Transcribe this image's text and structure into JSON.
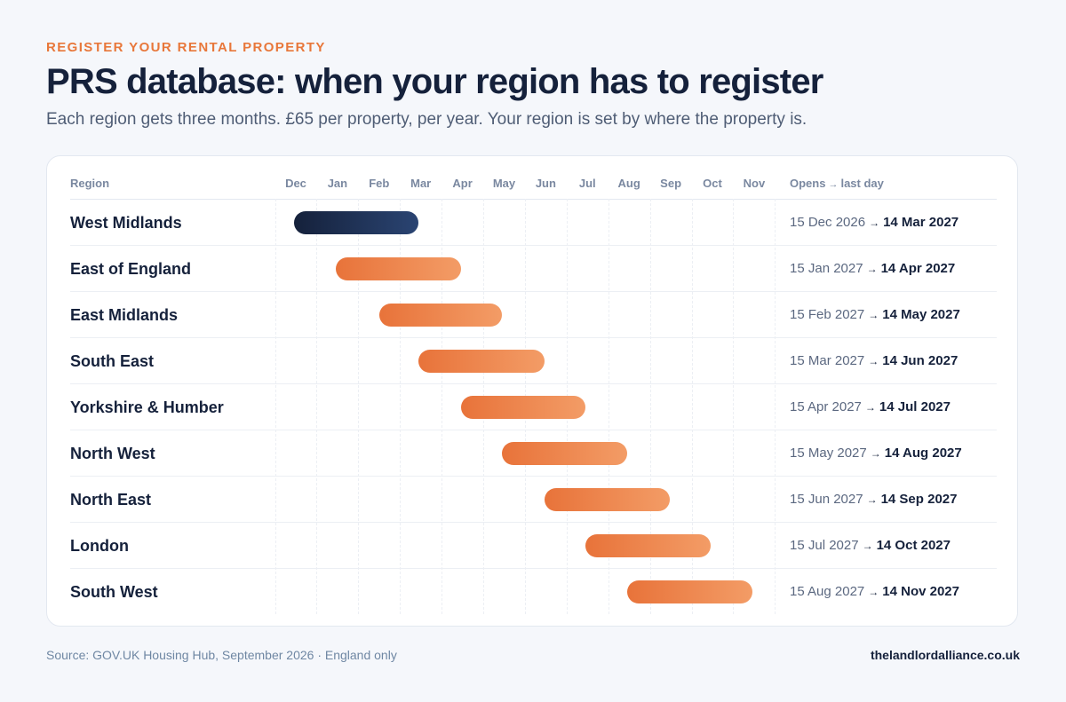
{
  "eyebrow": "REGISTER YOUR RENTAL PROPERTY",
  "title": "PRS database: when your region has to register",
  "subtitle": "Each region gets three months. £65 per property, per year. Your region is set by where the property is.",
  "table": {
    "region_header": "Region",
    "opens_header": "Opens",
    "arrow": "→",
    "last_day_header": "last day"
  },
  "footer": {
    "source": "Source: GOV.UK Housing Hub, September 2026 · England only",
    "site": "thelandlordalliance.co.uk"
  },
  "colors": {
    "accent": "#e8773a",
    "bar_start": "#e8733a",
    "bar_end": "#f39c66",
    "active_start": "#15213b",
    "active_end": "#2a4472",
    "text": "#15213b"
  },
  "chart_data": {
    "type": "gantt",
    "months": [
      "Dec",
      "Jan",
      "Feb",
      "Mar",
      "Apr",
      "May",
      "Jun",
      "Jul",
      "Aug",
      "Sep",
      "Oct",
      "Nov"
    ],
    "grid": true,
    "rows": [
      {
        "region": "West Midlands",
        "open": "15 Dec 2026",
        "last": "14 Mar 2027",
        "start": "2026-12-15",
        "end": "2027-03-14",
        "highlight": true
      },
      {
        "region": "East of England",
        "open": "15 Jan 2027",
        "last": "14 Apr 2027",
        "start": "2027-01-15",
        "end": "2027-04-14",
        "highlight": false
      },
      {
        "region": "East Midlands",
        "open": "15 Feb 2027",
        "last": "14 May 2027",
        "start": "2027-02-15",
        "end": "2027-05-14",
        "highlight": false
      },
      {
        "region": "South East",
        "open": "15 Mar 2027",
        "last": "14 Jun 2027",
        "start": "2027-03-15",
        "end": "2027-06-14",
        "highlight": false
      },
      {
        "region": "Yorkshire & Humber",
        "open": "15 Apr 2027",
        "last": "14 Jul 2027",
        "start": "2027-04-15",
        "end": "2027-07-14",
        "highlight": false
      },
      {
        "region": "North West",
        "open": "15 May 2027",
        "last": "14 Aug 2027",
        "start": "2027-05-15",
        "end": "2027-08-14",
        "highlight": false
      },
      {
        "region": "North East",
        "open": "15 Jun 2027",
        "last": "14 Sep 2027",
        "start": "2027-06-15",
        "end": "2027-09-14",
        "highlight": false
      },
      {
        "region": "London",
        "open": "15 Jul 2027",
        "last": "14 Oct 2027",
        "start": "2027-07-15",
        "end": "2027-10-14",
        "highlight": false
      },
      {
        "region": "South West",
        "open": "15 Aug 2027",
        "last": "14 Nov 2027",
        "start": "2027-08-15",
        "end": "2027-11-14",
        "highlight": false
      }
    ]
  }
}
